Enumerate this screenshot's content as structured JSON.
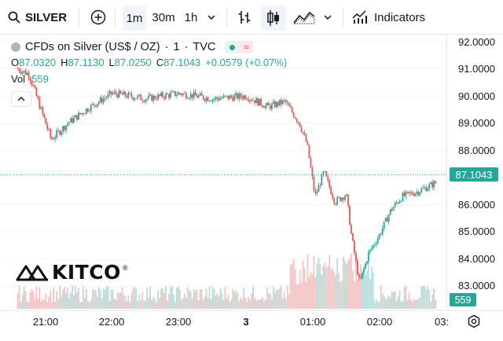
{
  "toolbar": {
    "symbol": "SILVER",
    "intervals": [
      "1m",
      "30m",
      "1h"
    ],
    "active_interval": "1m",
    "indicators_label": "Indicators"
  },
  "legend": {
    "title": "CFDs on Silver (US$ / OZ)",
    "interval": "1",
    "exchange": "TVC",
    "separator": "·"
  },
  "ohlc": {
    "o_label": "O",
    "o": "87.0320",
    "h_label": "H",
    "h": "87.1130",
    "l_label": "L",
    "l": "87.0250",
    "c_label": "C",
    "c": "87.1043",
    "change": "+0.0579 (+0.07%)"
  },
  "volume": {
    "label": "Vol",
    "value": "559"
  },
  "price_axis": {
    "labels": [
      "92.0000",
      "91.0000",
      "90.0000",
      "89.0000",
      "88.0000",
      "87.0000",
      "86.0000",
      "85.0000",
      "84.0000",
      "83.0000"
    ],
    "current_price": "87.1043",
    "current_volume": "559"
  },
  "time_axis": {
    "labels": [
      "21:00",
      "22:00",
      "23:00",
      "3",
      "01:00",
      "02:00",
      "03:"
    ]
  },
  "logo": {
    "text": "KITCO",
    "registered": "®"
  },
  "colors": {
    "up": "#26a69a",
    "down": "#ef5350",
    "vol_up": "#b7ded9",
    "vol_down": "#f6c4c3",
    "grid": "#f0f3fa"
  },
  "chart_data": {
    "type": "candlestick",
    "symbol": "SILVER",
    "interval_minutes": 1,
    "ylim": [
      82.8,
      92.4
    ],
    "x_ticks": [
      "21:00",
      "22:00",
      "23:00",
      "3",
      "01:00",
      "02:00",
      "03:"
    ],
    "path_keypoints": {
      "time": [
        "20:35",
        "20:45",
        "20:55",
        "21:05",
        "21:20",
        "21:40",
        "22:00",
        "22:30",
        "23:00",
        "23:30",
        "00:00",
        "00:20",
        "00:35",
        "00:48",
        "00:55",
        "01:02",
        "01:10",
        "01:20",
        "01:30",
        "01:35",
        "01:42",
        "01:50",
        "02:00",
        "02:10",
        "02:20",
        "02:35",
        "02:50",
        "03:00"
      ],
      "close": [
        91.0,
        90.8,
        89.6,
        88.4,
        89.0,
        89.6,
        90.1,
        89.9,
        90.1,
        89.9,
        90.0,
        89.6,
        89.8,
        89.0,
        88.2,
        86.3,
        87.2,
        86.1,
        86.4,
        84.8,
        83.1,
        84.2,
        84.9,
        85.8,
        86.3,
        86.5,
        86.8,
        87.1
      ]
    },
    "last_close": 87.1043,
    "last_volume": 559
  }
}
